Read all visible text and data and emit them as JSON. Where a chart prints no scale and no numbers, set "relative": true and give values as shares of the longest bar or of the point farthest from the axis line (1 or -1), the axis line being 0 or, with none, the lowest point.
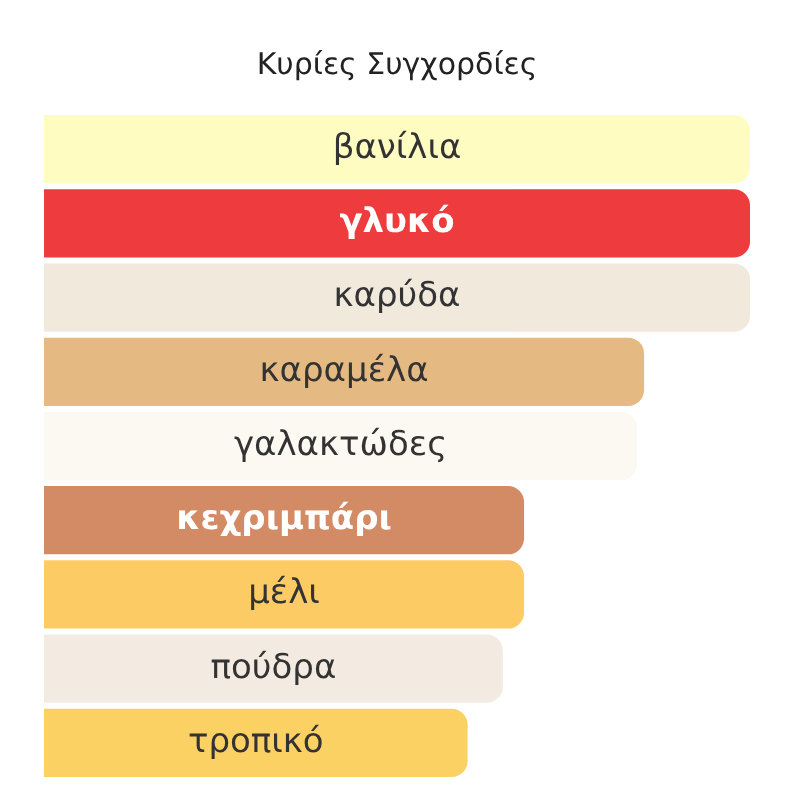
{
  "chart_data": {
    "type": "bar",
    "title": "Κυρίες Συγχορδίες",
    "orientation": "horizontal",
    "relative": true,
    "categories": [
      "βανίλια",
      "γλυκό",
      "καρύδα",
      "καραμέλα",
      "γαλακτώδες",
      "κεχριμπάρι",
      "μέλι",
      "πούδρα",
      "τροπικό"
    ],
    "values": [
      1,
      1,
      1,
      0.85,
      0.84,
      0.68,
      0.68,
      0.65,
      0.6
    ],
    "colors": [
      "#fefcc0",
      "#ee3b3d",
      "#f0e9dc",
      "#e4b982",
      "#fbf9f2",
      "#d28b65",
      "#fdcb64",
      "#f3ebe1",
      "#fbd164"
    ]
  }
}
